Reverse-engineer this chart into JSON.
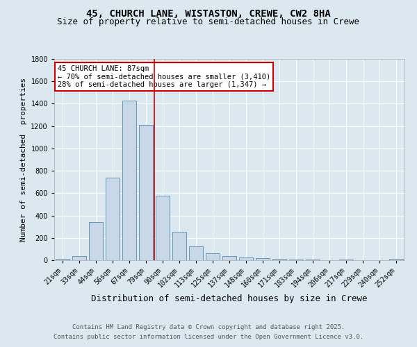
{
  "title_line1": "45, CHURCH LANE, WISTASTON, CREWE, CW2 8HA",
  "title_line2": "Size of property relative to semi-detached houses in Crewe",
  "xlabel": "Distribution of semi-detached houses by size in Crewe",
  "ylabel": "Number of semi-detached  properties",
  "categories": [
    "21sqm",
    "33sqm",
    "44sqm",
    "56sqm",
    "67sqm",
    "79sqm",
    "90sqm",
    "102sqm",
    "113sqm",
    "125sqm",
    "137sqm",
    "148sqm",
    "160sqm",
    "171sqm",
    "183sqm",
    "194sqm",
    "206sqm",
    "217sqm",
    "229sqm",
    "240sqm",
    "252sqm"
  ],
  "values": [
    15,
    35,
    340,
    740,
    1430,
    1210,
    580,
    255,
    125,
    65,
    35,
    25,
    18,
    10,
    8,
    5,
    3,
    5,
    2,
    2,
    10
  ],
  "bar_color": "#c8d8e8",
  "bar_edge_color": "#5588aa",
  "vline_x_index": 5.5,
  "vline_color": "#cc0000",
  "annotation_title": "45 CHURCH LANE: 87sqm",
  "annotation_line1": "← 70% of semi-detached houses are smaller (3,410)",
  "annotation_line2": "28% of semi-detached houses are larger (1,347) →",
  "annotation_box_color": "#ffffff",
  "annotation_box_edgecolor": "#cc0000",
  "ylim": [
    0,
    1800
  ],
  "yticks": [
    0,
    200,
    400,
    600,
    800,
    1000,
    1200,
    1400,
    1600,
    1800
  ],
  "footnote1": "Contains HM Land Registry data © Crown copyright and database right 2025.",
  "footnote2": "Contains public sector information licensed under the Open Government Licence v3.0.",
  "background_color": "#dce8f0",
  "plot_background_color": "#dce8f0",
  "title_fontsize": 10,
  "subtitle_fontsize": 9,
  "axis_label_fontsize": 8,
  "tick_fontsize": 7,
  "annotation_fontsize": 7.5,
  "footnote_fontsize": 6.5
}
